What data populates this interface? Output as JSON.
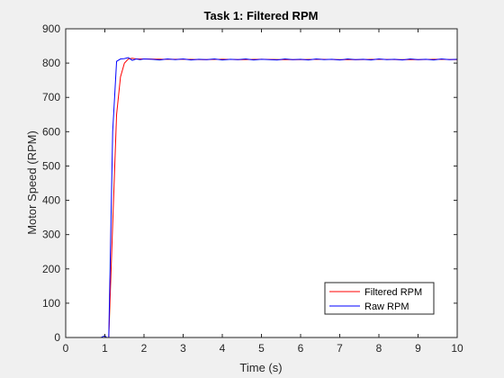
{
  "figure": {
    "background": "#f0f0f0"
  },
  "chart_data": {
    "type": "line",
    "title": "Task 1: Filtered RPM",
    "xlabel": "Time (s)",
    "ylabel": "Motor Speed (RPM)",
    "xlim": [
      0,
      10
    ],
    "ylim": [
      0,
      900
    ],
    "xticks": [
      0,
      1,
      2,
      3,
      4,
      5,
      6,
      7,
      8,
      9,
      10
    ],
    "yticks": [
      0,
      100,
      200,
      300,
      400,
      500,
      600,
      700,
      800,
      900
    ],
    "grid": false,
    "legend_location": "bottom-right",
    "series": [
      {
        "name": "Filtered RPM",
        "color": "#ff0000",
        "x": [
          0,
          0.1,
          0.2,
          0.3,
          0.4,
          0.5,
          0.6,
          0.7,
          0.8,
          0.9,
          1.0,
          1.05,
          1.1,
          1.2,
          1.3,
          1.4,
          1.5,
          1.6,
          1.7,
          1.8,
          1.9,
          2.0,
          2.5,
          3.0,
          3.5,
          4.0,
          4.5,
          5.0,
          5.5,
          6.0,
          6.5,
          7.0,
          7.5,
          8.0,
          8.5,
          9.0,
          9.5,
          10.0
        ],
        "y": [
          0,
          0,
          0,
          0,
          0,
          0,
          0,
          0,
          0,
          0,
          0,
          0,
          0,
          330,
          650,
          760,
          800,
          812,
          814,
          812,
          812,
          812,
          811,
          811,
          810,
          811,
          810,
          811,
          810,
          810,
          811,
          810,
          810,
          811,
          810,
          810,
          811,
          810
        ]
      },
      {
        "name": "Raw RPM",
        "color": "#0000ff",
        "x": [
          0,
          0.1,
          0.2,
          0.3,
          0.4,
          0.5,
          0.6,
          0.7,
          0.8,
          0.9,
          1.0,
          1.05,
          1.1,
          1.2,
          1.3,
          1.4,
          1.5,
          1.6,
          1.7,
          1.8,
          1.9,
          2.0,
          2.2,
          2.4,
          2.6,
          2.8,
          3.0,
          3.2,
          3.4,
          3.6,
          3.8,
          4.0,
          4.2,
          4.4,
          4.6,
          4.8,
          5.0,
          5.2,
          5.4,
          5.6,
          5.8,
          6.0,
          6.2,
          6.4,
          6.6,
          6.8,
          7.0,
          7.2,
          7.4,
          7.6,
          7.8,
          8.0,
          8.2,
          8.4,
          8.6,
          8.8,
          9.0,
          9.2,
          9.4,
          9.6,
          9.8,
          10.0
        ],
        "y": [
          0,
          0,
          0,
          0,
          0,
          0,
          0,
          0,
          0,
          0,
          5,
          0,
          0,
          600,
          805,
          812,
          813,
          816,
          808,
          812,
          810,
          812,
          811,
          809,
          812,
          810,
          812,
          809,
          811,
          810,
          812,
          809,
          811,
          810,
          812,
          809,
          811,
          810,
          809,
          812,
          810,
          811,
          809,
          812,
          810,
          811,
          809,
          812,
          810,
          811,
          809,
          812,
          810,
          811,
          809,
          812,
          810,
          811,
          809,
          812,
          810,
          811
        ]
      }
    ]
  }
}
